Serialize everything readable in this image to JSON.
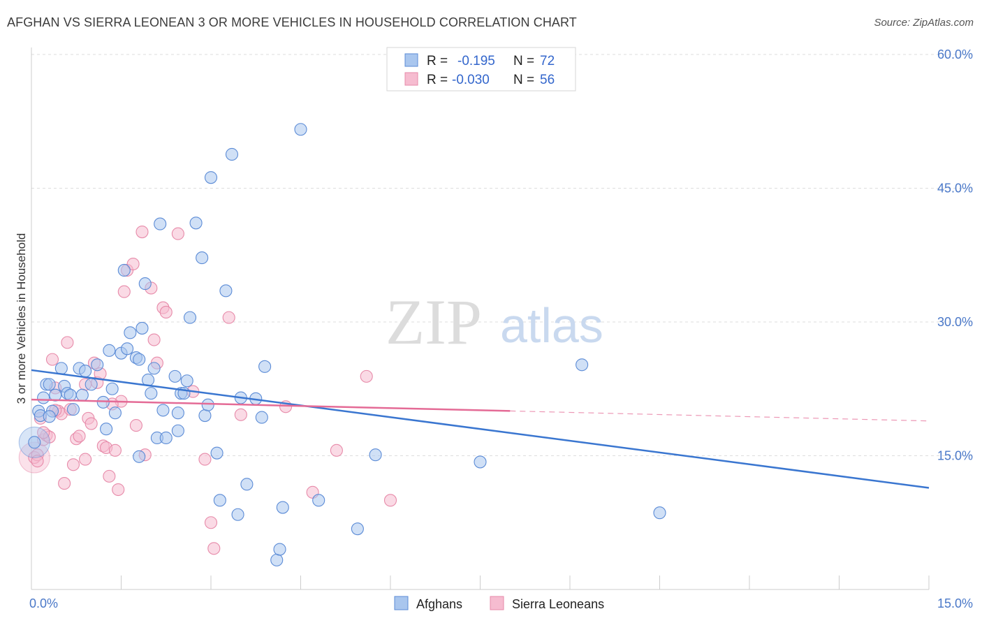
{
  "title": "AFGHAN VS SIERRA LEONEAN 3 OR MORE VEHICLES IN HOUSEHOLD CORRELATION CHART",
  "source": "Source: ZipAtlas.com",
  "watermark": {
    "zip": "ZIP",
    "atlas": "atlas"
  },
  "colors": {
    "afghans_fill": "#a9c6ee",
    "afghans_stroke": "#5b8bd6",
    "afghans_line": "#3a76d0",
    "sierra_fill": "#f6bcd0",
    "sierra_stroke": "#e78aa9",
    "sierra_line": "#e46b96",
    "grid": "#dddddd",
    "axis_label": "#4a78c8"
  },
  "legend": {
    "rows": [
      {
        "r_label": "R =",
        "r_value": "-0.195",
        "n_label": "N =",
        "n_value": "72"
      },
      {
        "r_label": "R =",
        "r_value": "-0.030",
        "n_label": "N =",
        "n_value": "56"
      }
    ]
  },
  "bottom_legend": [
    "Afghans",
    "Sierra Leoneans"
  ],
  "chart_data": {
    "type": "scatter",
    "title": "AFGHAN VS SIERRA LEONEAN 3 OR MORE VEHICLES IN HOUSEHOLD CORRELATION CHART",
    "xlabel": "",
    "ylabel": "3 or more Vehicles in Household",
    "xlim": [
      0,
      15
    ],
    "ylim": [
      0,
      60
    ],
    "x_tick_labels": [
      "0.0%",
      "15.0%"
    ],
    "y_ticks": [
      15,
      30,
      45,
      60
    ],
    "y_tick_labels": [
      "15.0%",
      "30.0%",
      "45.0%",
      "60.0%"
    ],
    "grid": true,
    "legend_position": "top-center",
    "series": [
      {
        "name": "Afghans",
        "r": -0.195,
        "n": 72,
        "trend": {
          "x": [
            0,
            15
          ],
          "y": [
            24.6,
            11.4
          ],
          "dashed_from": null
        },
        "points": [
          [
            0.05,
            16.5
          ],
          [
            0.12,
            20
          ],
          [
            0.15,
            19.5
          ],
          [
            0.2,
            21.5
          ],
          [
            0.25,
            23
          ],
          [
            0.3,
            23
          ],
          [
            0.35,
            20
          ],
          [
            0.4,
            21.8
          ],
          [
            0.5,
            24.8
          ],
          [
            0.55,
            22.8
          ],
          [
            0.6,
            22
          ],
          [
            0.65,
            21.8
          ],
          [
            0.7,
            20.2
          ],
          [
            0.8,
            24.8
          ],
          [
            0.85,
            21.8
          ],
          [
            0.9,
            24.5
          ],
          [
            1.0,
            23
          ],
          [
            1.1,
            25.2
          ],
          [
            1.2,
            21
          ],
          [
            1.25,
            18
          ],
          [
            1.3,
            26.8
          ],
          [
            1.35,
            22.5
          ],
          [
            1.4,
            19.8
          ],
          [
            1.5,
            26.5
          ],
          [
            1.55,
            35.8
          ],
          [
            1.6,
            27
          ],
          [
            1.65,
            28.8
          ],
          [
            1.75,
            26
          ],
          [
            1.8,
            25.8
          ],
          [
            1.85,
            29.3
          ],
          [
            1.9,
            34.3
          ],
          [
            1.95,
            23.5
          ],
          [
            2.0,
            22
          ],
          [
            2.05,
            24.8
          ],
          [
            2.1,
            17
          ],
          [
            2.15,
            41
          ],
          [
            2.2,
            20.1
          ],
          [
            2.25,
            17
          ],
          [
            2.4,
            23.9
          ],
          [
            2.45,
            17.8
          ],
          [
            2.5,
            22
          ],
          [
            2.55,
            22
          ],
          [
            2.6,
            23.4
          ],
          [
            2.65,
            30.5
          ],
          [
            2.75,
            41.1
          ],
          [
            2.85,
            37.2
          ],
          [
            2.9,
            19.5
          ],
          [
            2.95,
            20.7
          ],
          [
            3.0,
            46.2
          ],
          [
            3.1,
            15.3
          ],
          [
            3.15,
            10
          ],
          [
            3.25,
            33.5
          ],
          [
            3.35,
            48.8
          ],
          [
            3.45,
            8.4
          ],
          [
            3.5,
            21.5
          ],
          [
            3.6,
            11.8
          ],
          [
            3.75,
            21.4
          ],
          [
            3.85,
            19.3
          ],
          [
            3.9,
            25
          ],
          [
            4.1,
            3.3
          ],
          [
            4.15,
            4.5
          ],
          [
            4.2,
            9.2
          ],
          [
            4.5,
            51.6
          ],
          [
            4.8,
            10
          ],
          [
            5.45,
            6.8
          ],
          [
            5.75,
            15.1
          ],
          [
            7.5,
            14.3
          ],
          [
            9.2,
            25.2
          ],
          [
            10.5,
            8.6
          ],
          [
            1.8,
            14.9
          ],
          [
            0.3,
            19.4
          ],
          [
            2.45,
            19.8
          ]
        ],
        "bubble_points": [
          [
            0.05,
            16.5
          ]
        ]
      },
      {
        "name": "Sierra Leoneans",
        "r": -0.03,
        "n": 56,
        "trend": {
          "x": [
            0,
            15
          ],
          "y": [
            21.3,
            18.9
          ],
          "dashed_from": 8.0
        },
        "points": [
          [
            0.05,
            14.8
          ],
          [
            0.1,
            15.1
          ],
          [
            0.15,
            19.2
          ],
          [
            0.2,
            16.8
          ],
          [
            0.25,
            17.3
          ],
          [
            0.3,
            17.1
          ],
          [
            0.35,
            25.8
          ],
          [
            0.4,
            22.6
          ],
          [
            0.45,
            20
          ],
          [
            0.5,
            19.7
          ],
          [
            0.55,
            11.9
          ],
          [
            0.6,
            27.7
          ],
          [
            0.65,
            20.2
          ],
          [
            0.7,
            14
          ],
          [
            0.75,
            16.9
          ],
          [
            0.8,
            17.2
          ],
          [
            0.9,
            14.6
          ],
          [
            0.95,
            19.2
          ],
          [
            1.0,
            18.6
          ],
          [
            1.05,
            25.4
          ],
          [
            1.1,
            23.2
          ],
          [
            1.15,
            24.2
          ],
          [
            1.2,
            16.1
          ],
          [
            1.25,
            15.9
          ],
          [
            1.3,
            12.7
          ],
          [
            1.4,
            15.6
          ],
          [
            1.45,
            11.2
          ],
          [
            1.5,
            21.1
          ],
          [
            1.55,
            33.4
          ],
          [
            1.6,
            35.8
          ],
          [
            1.7,
            36.5
          ],
          [
            1.75,
            18.4
          ],
          [
            1.85,
            40.1
          ],
          [
            1.9,
            15.1
          ],
          [
            2.0,
            33.8
          ],
          [
            2.05,
            28
          ],
          [
            2.1,
            25.4
          ],
          [
            2.2,
            31.6
          ],
          [
            2.25,
            31.1
          ],
          [
            2.45,
            39.9
          ],
          [
            2.7,
            22.2
          ],
          [
            2.9,
            14.6
          ],
          [
            3.0,
            7.5
          ],
          [
            3.05,
            4.6
          ],
          [
            3.3,
            30.5
          ],
          [
            3.5,
            19.6
          ],
          [
            4.25,
            20.5
          ],
          [
            4.7,
            10.9
          ],
          [
            5.1,
            15.6
          ],
          [
            5.6,
            23.9
          ],
          [
            6.0,
            10.0
          ],
          [
            0.1,
            14.4
          ],
          [
            0.4,
            20.1
          ],
          [
            0.9,
            23.0
          ],
          [
            1.35,
            20.8
          ],
          [
            0.2,
            17.6
          ]
        ],
        "bubble_points": [
          [
            0.05,
            14.8
          ]
        ]
      }
    ]
  }
}
